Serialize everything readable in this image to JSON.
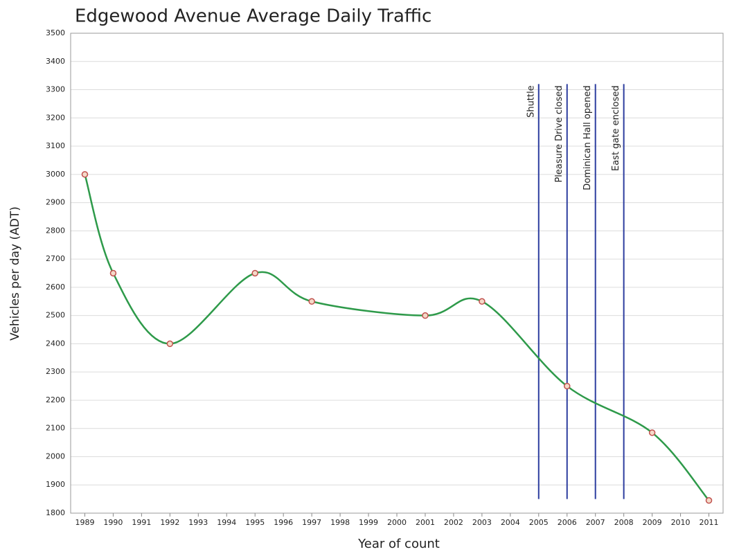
{
  "chart_data": {
    "type": "line",
    "title": "Edgewood Avenue Average Daily Traffic",
    "x_label": "Year of count",
    "y_label": "Vehicles per day (ADT)",
    "x": [
      1989,
      1990,
      1992,
      1995,
      1997,
      2001,
      2003,
      2006,
      2009,
      2011
    ],
    "values": [
      3000,
      2650,
      2400,
      2650,
      2550,
      2500,
      2550,
      2250,
      2085,
      1845
    ],
    "color": "#2e9a4a",
    "marker_color": "#c0504d",
    "xlim": [
      1988.5,
      2011.5
    ],
    "xticks": [
      1989,
      1990,
      1991,
      1992,
      1993,
      1994,
      1995,
      1996,
      1997,
      1998,
      1999,
      2000,
      2001,
      2002,
      2003,
      2004,
      2005,
      2006,
      2007,
      2008,
      2009,
      2010,
      2011
    ],
    "ylim": [
      1800,
      3500
    ],
    "yticks": [
      1800,
      1900,
      2000,
      2100,
      2200,
      2300,
      2400,
      2500,
      2600,
      2700,
      2800,
      2900,
      3000,
      3100,
      3200,
      3300,
      3400,
      3500
    ],
    "grid": true,
    "annotations": [
      {
        "text": "Shuttle",
        "x": 2005,
        "y_range": [
          1850,
          3320
        ]
      },
      {
        "text": "Pleasure Drive closed",
        "x": 2006,
        "y_range": [
          1850,
          3320
        ]
      },
      {
        "text": "Dominican Hall opened",
        "x": 2007,
        "y_range": [
          1850,
          3320
        ]
      },
      {
        "text": "East gate enclosed",
        "x": 2008,
        "y_range": [
          1850,
          3320
        ]
      }
    ],
    "annotation_color": "#2b3c9e"
  }
}
